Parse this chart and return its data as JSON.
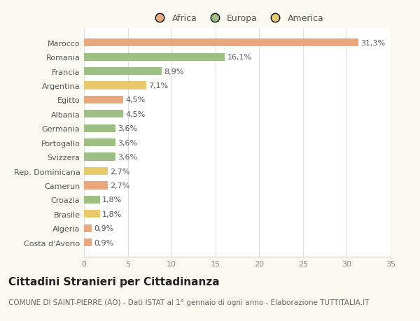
{
  "categories": [
    "Costa d'Avorio",
    "Algeria",
    "Brasile",
    "Croazia",
    "Camerun",
    "Rep. Dominicana",
    "Svizzera",
    "Portogallo",
    "Germania",
    "Albania",
    "Egitto",
    "Argentina",
    "Francia",
    "Romania",
    "Marocco"
  ],
  "values": [
    0.9,
    0.9,
    1.8,
    1.8,
    2.7,
    2.7,
    3.6,
    3.6,
    3.6,
    4.5,
    4.5,
    7.1,
    8.9,
    16.1,
    31.3
  ],
  "labels": [
    "0,9%",
    "0,9%",
    "1,8%",
    "1,8%",
    "2,7%",
    "2,7%",
    "3,6%",
    "3,6%",
    "3,6%",
    "4,5%",
    "4,5%",
    "7,1%",
    "8,9%",
    "16,1%",
    "31,3%"
  ],
  "colors": [
    "#e8a87c",
    "#e8a87c",
    "#e8c96a",
    "#9dbf84",
    "#e8a87c",
    "#e8c96a",
    "#9dbf84",
    "#9dbf84",
    "#9dbf84",
    "#9dbf84",
    "#e8a87c",
    "#e8c96a",
    "#9dbf84",
    "#9dbf84",
    "#e8a87c"
  ],
  "legend_labels": [
    "Africa",
    "Europa",
    "America"
  ],
  "legend_colors": [
    "#e8a87c",
    "#9dbf84",
    "#e8c96a"
  ],
  "xlim": [
    0,
    35
  ],
  "xticks": [
    0,
    5,
    10,
    15,
    20,
    25,
    30,
    35
  ],
  "title": "Cittadini Stranieri per Cittadinanza",
  "subtitle": "COMUNE DI SAINT-PIERRE (AO) - Dati ISTAT al 1° gennaio di ogni anno - Elaborazione TUTTITALIA.IT",
  "background_color": "#f9f9f2",
  "plot_bg_color": "#ffffff",
  "bar_height": 0.55,
  "title_fontsize": 11,
  "subtitle_fontsize": 7.5,
  "label_fontsize": 8,
  "tick_fontsize": 8
}
